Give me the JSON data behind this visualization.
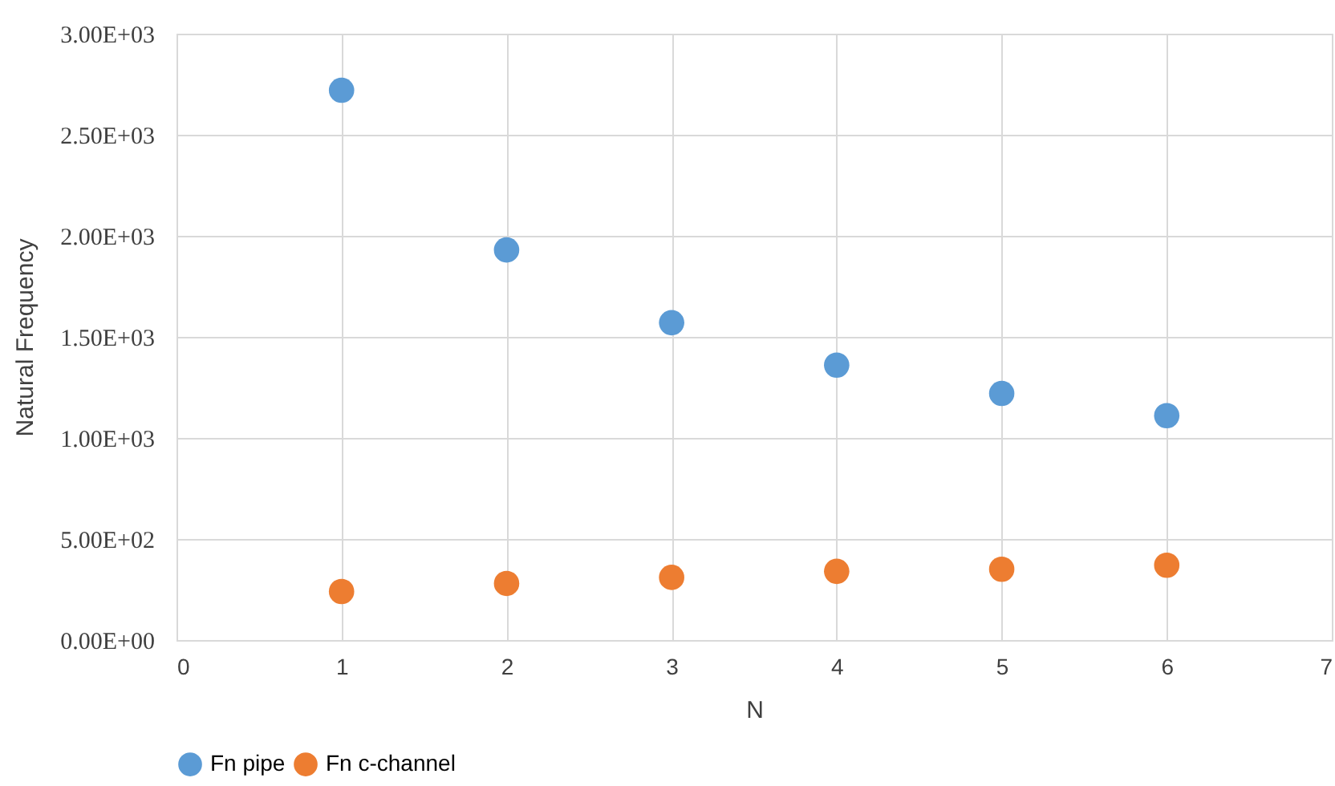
{
  "chart_data": {
    "type": "scatter",
    "xlabel": "N",
    "ylabel": "Natural Frequency",
    "x": [
      1,
      2,
      3,
      4,
      5,
      6
    ],
    "series": [
      {
        "name": "Fn pipe",
        "color": "#5b9bd5",
        "values": [
          2720,
          1930,
          1570,
          1360,
          1220,
          1110
        ]
      },
      {
        "name": "Fn c-channel",
        "color": "#ed7d31",
        "values": [
          240,
          280,
          310,
          340,
          350,
          370
        ]
      }
    ],
    "xlim": [
      0,
      7
    ],
    "xticks": [
      0,
      1,
      2,
      3,
      4,
      5,
      6,
      7
    ],
    "ylim": [
      0,
      3000
    ],
    "yticks": [
      {
        "value": 0,
        "label": "0.00E+00"
      },
      {
        "value": 500,
        "label": "5.00E+02"
      },
      {
        "value": 1000,
        "label": "1.00E+03"
      },
      {
        "value": 1500,
        "label": "1.50E+03"
      },
      {
        "value": 2000,
        "label": "2.00E+03"
      },
      {
        "value": 2500,
        "label": "2.50E+03"
      },
      {
        "value": 3000,
        "label": "3.00E+03"
      }
    ],
    "grid": true,
    "legend": "bottom left",
    "marker": "circle"
  }
}
